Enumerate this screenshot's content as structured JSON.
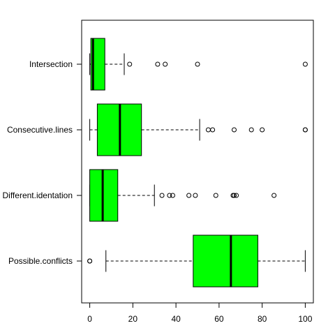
{
  "chart_data": {
    "type": "boxplot",
    "orientation": "horizontal",
    "title": "",
    "xlabel": "",
    "ylabel": "",
    "xlim": [
      -3,
      103
    ],
    "x_ticks": [
      0,
      20,
      40,
      60,
      80,
      100
    ],
    "box_color": "#00ff00",
    "categories": [
      "Intersection",
      "Consecutive.lines",
      "Different.identation",
      "Possible.conflicts"
    ],
    "boxes": [
      {
        "name": "Intersection",
        "whisker_low": 0,
        "q1": 0.5,
        "median": 1.5,
        "q3": 7,
        "whisker_high": 16,
        "outliers": [
          18.5,
          31.5,
          35,
          50,
          100
        ]
      },
      {
        "name": "Consecutive.lines",
        "whisker_low": 0,
        "q1": 3.5,
        "median": 14,
        "q3": 24,
        "whisker_high": 51,
        "outliers": [
          55,
          57,
          67,
          75,
          80,
          100,
          100
        ]
      },
      {
        "name": "Different.identation",
        "whisker_low": 0,
        "q1": 0,
        "median": 6,
        "q3": 13,
        "whisker_high": 30,
        "outliers": [
          33.5,
          37,
          38.5,
          46,
          49,
          58.5,
          66.5,
          67,
          68,
          85.5
        ]
      },
      {
        "name": "Possible.conflicts",
        "whisker_low": 7.5,
        "q1": 48,
        "median": 65.5,
        "q3": 78,
        "whisker_high": 100,
        "outliers": [
          0,
          0
        ]
      }
    ]
  }
}
